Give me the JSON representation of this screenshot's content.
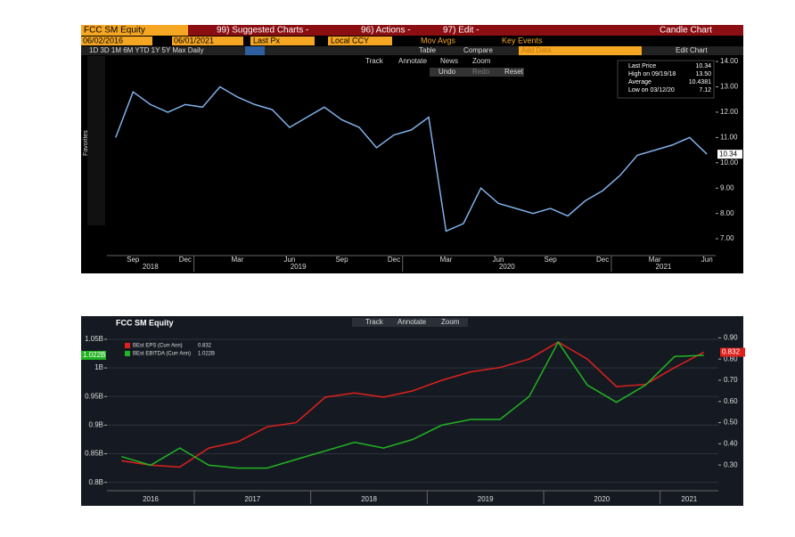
{
  "toolbar": {
    "security": "FCC SM Equity",
    "suggested": "99) Suggested Charts -",
    "actions": "96) Actions -",
    "edit": "97) Edit -",
    "chart_kind": "Candle Chart",
    "start_date": "06/02/2016",
    "end_date": "06/01/2021",
    "field": "Last Px",
    "currency": "Local CCY",
    "mov_avgs": "Mov Avgs",
    "key_events": "Key Events",
    "periods": "1D  3D  1M  6M  YTD  1Y  5Y  Max  Daily",
    "table": "Table",
    "compare": "Compare",
    "add_data": "Add Data",
    "edit_chart": "Edit Chart",
    "track": "Track",
    "annotate": "Annotate",
    "news": "News",
    "zoom": "Zoom",
    "undo": "Undo",
    "redo": "Redo",
    "reset": "Reset",
    "favorites": "Favorites"
  },
  "chart_data": [
    {
      "type": "line",
      "ylim": [
        6.37,
        14.25
      ],
      "yticks": [
        {
          "value": 7,
          "label": "7.00"
        },
        {
          "value": 8,
          "label": "8.00"
        },
        {
          "value": 9,
          "label": "9.00"
        },
        {
          "value": 10,
          "label": "10.00"
        },
        {
          "value": 11,
          "label": "11.00"
        },
        {
          "value": 12,
          "label": "12.00"
        },
        {
          "value": 13,
          "label": "13.00"
        },
        {
          "value": 14,
          "label": "14.00"
        }
      ],
      "grid": false,
      "categories": [
        null,
        "Sep",
        null,
        null,
        "Dec",
        null,
        null,
        "Mar",
        null,
        null,
        "Jun",
        null,
        null,
        "Sep",
        null,
        null,
        "Dec",
        null,
        null,
        "Mar",
        null,
        null,
        "Jun",
        null,
        null,
        "Sep",
        null,
        null,
        "Dec",
        null,
        null,
        "Mar",
        null,
        null,
        "Jun"
      ],
      "x_groups": [
        {
          "label": "2018",
          "start": 0,
          "end": 4
        },
        {
          "label": "2019",
          "start": 5,
          "end": 16
        },
        {
          "label": "2020",
          "start": 17,
          "end": 28
        },
        {
          "label": "2021",
          "start": 29,
          "end": 34
        }
      ],
      "series": [
        {
          "name": "Last Price",
          "color": "#7fb0e8",
          "values": [
            11.0,
            12.8,
            12.3,
            12.0,
            12.3,
            12.2,
            13.0,
            12.6,
            12.3,
            12.1,
            11.4,
            11.8,
            12.2,
            11.7,
            11.4,
            10.6,
            11.1,
            11.3,
            11.8,
            7.3,
            7.6,
            9.0,
            8.4,
            8.2,
            8.0,
            8.2,
            7.9,
            8.5,
            8.9,
            9.5,
            10.3,
            10.5,
            10.7,
            11.0,
            10.34
          ]
        }
      ],
      "stats": [
        {
          "label": "Last Price",
          "value": "10.34"
        },
        {
          "label": "High on 09/19/18",
          "value": "13.50"
        },
        {
          "label": "Average",
          "value": "10.4381"
        },
        {
          "label": "Low on 03/12/20",
          "value": "7.12"
        }
      ]
    },
    {
      "type": "line",
      "title": "FCC SM Equity",
      "ylim": [
        0.787,
        1.064
      ],
      "y2lim": [
        0.183,
        0.931
      ],
      "yticks": [
        {
          "value": 0.8,
          "label": "0.8B"
        },
        {
          "value": 0.85,
          "label": "0.85B"
        },
        {
          "value": 0.9,
          "label": "0.9B"
        },
        {
          "value": 0.95,
          "label": "0.95B"
        },
        {
          "value": 1,
          "label": "1B"
        },
        {
          "value": 1.05,
          "label": "1.05B"
        }
      ],
      "y2ticks": [
        {
          "value": 0.3,
          "label": "0.30"
        },
        {
          "value": 0.4,
          "label": "0.40"
        },
        {
          "value": 0.5,
          "label": "0.50"
        },
        {
          "value": 0.6,
          "label": "0.60"
        },
        {
          "value": 0.7,
          "label": "0.70"
        },
        {
          "value": 0.8,
          "label": "0.80"
        },
        {
          "value": 0.9,
          "label": "0.90"
        }
      ],
      "grid": true,
      "categories": [
        null,
        null,
        null,
        null,
        null,
        null,
        null,
        null,
        null,
        null,
        null,
        null,
        null,
        null,
        null,
        null,
        null,
        null,
        null,
        null,
        null
      ],
      "x_groups": [
        {
          "label": "2016",
          "start": 0,
          "end": 2
        },
        {
          "label": "2017",
          "start": 3,
          "end": 6
        },
        {
          "label": "2018",
          "start": 7,
          "end": 10
        },
        {
          "label": "2019",
          "start": 11,
          "end": 14
        },
        {
          "label": "2020",
          "start": 15,
          "end": 18
        },
        {
          "label": "2021",
          "start": 19,
          "end": 20
        }
      ],
      "series": [
        {
          "name": "BEst EPS (Curr Ann)",
          "color": "#e0201c",
          "axis": "y2",
          "last_label": "0.832",
          "values": [
            0.32,
            0.3,
            0.29,
            0.38,
            0.41,
            0.48,
            0.5,
            0.62,
            0.64,
            0.62,
            0.65,
            0.7,
            0.74,
            0.76,
            0.8,
            0.88,
            0.8,
            0.67,
            0.68,
            0.76,
            0.832
          ]
        },
        {
          "name": "BEst EBITDA (Curr Ann)",
          "color": "#22b322",
          "last_label": "1.022B",
          "values": [
            0.845,
            0.83,
            0.86,
            0.83,
            0.825,
            0.825,
            0.84,
            0.855,
            0.87,
            0.86,
            0.875,
            0.9,
            0.91,
            0.91,
            0.95,
            1.045,
            0.97,
            0.94,
            0.97,
            1.02,
            1.022
          ]
        }
      ]
    }
  ]
}
